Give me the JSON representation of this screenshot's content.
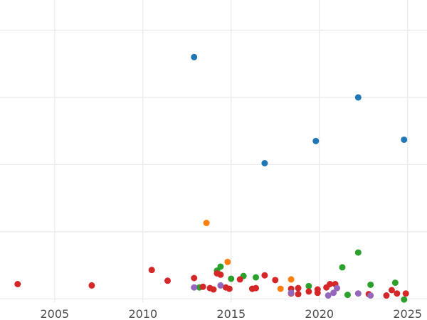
{
  "chart_data": {
    "type": "scatter",
    "title": "",
    "xlabel": "",
    "ylabel": "",
    "xlim": [
      2001.9,
      2026.1
    ],
    "ylim": [
      0,
      450
    ],
    "x_ticks": [
      2005,
      2010,
      2015,
      2020,
      2025
    ],
    "x_tick_labels": [
      "2005",
      "2010",
      "2015",
      "2020",
      "2025"
    ],
    "y_gridlines": [
      5,
      105,
      205,
      305,
      405
    ],
    "grid": true,
    "legend": "none",
    "series": [
      {
        "color": "#1f77b4",
        "points": [
          {
            "x": 2012.9,
            "y": 365
          },
          {
            "x": 2016.9,
            "y": 207
          },
          {
            "x": 2019.8,
            "y": 240
          },
          {
            "x": 2022.2,
            "y": 305
          },
          {
            "x": 2024.8,
            "y": 242
          }
        ]
      },
      {
        "color": "#ff7f0e",
        "points": [
          {
            "x": 2013.6,
            "y": 118
          },
          {
            "x": 2014.8,
            "y": 60
          },
          {
            "x": 2017.8,
            "y": 20
          },
          {
            "x": 2018.4,
            "y": 34
          }
        ]
      },
      {
        "color": "#2ca02c",
        "points": [
          {
            "x": 2013.2,
            "y": 22
          },
          {
            "x": 2014.2,
            "y": 47
          },
          {
            "x": 2014.4,
            "y": 53
          },
          {
            "x": 2015.0,
            "y": 35
          },
          {
            "x": 2015.7,
            "y": 39
          },
          {
            "x": 2016.2,
            "y": 20
          },
          {
            "x": 2016.4,
            "y": 37
          },
          {
            "x": 2019.4,
            "y": 24
          },
          {
            "x": 2021.3,
            "y": 52
          },
          {
            "x": 2021.6,
            "y": 11
          },
          {
            "x": 2022.2,
            "y": 74
          },
          {
            "x": 2022.9,
            "y": 26
          },
          {
            "x": 2024.3,
            "y": 29
          },
          {
            "x": 2024.8,
            "y": 4
          }
        ]
      },
      {
        "color": "#d62728",
        "points": [
          {
            "x": 2002.9,
            "y": 27
          },
          {
            "x": 2007.1,
            "y": 25
          },
          {
            "x": 2010.5,
            "y": 48
          },
          {
            "x": 2011.4,
            "y": 32
          },
          {
            "x": 2012.9,
            "y": 36
          },
          {
            "x": 2013.4,
            "y": 23
          },
          {
            "x": 2013.8,
            "y": 21
          },
          {
            "x": 2014.0,
            "y": 19
          },
          {
            "x": 2014.2,
            "y": 43
          },
          {
            "x": 2014.4,
            "y": 41
          },
          {
            "x": 2014.7,
            "y": 22
          },
          {
            "x": 2014.9,
            "y": 20
          },
          {
            "x": 2015.5,
            "y": 34
          },
          {
            "x": 2016.2,
            "y": 20
          },
          {
            "x": 2016.4,
            "y": 21
          },
          {
            "x": 2016.9,
            "y": 40
          },
          {
            "x": 2017.5,
            "y": 33
          },
          {
            "x": 2018.4,
            "y": 20
          },
          {
            "x": 2018.4,
            "y": 13
          },
          {
            "x": 2018.8,
            "y": 21
          },
          {
            "x": 2018.8,
            "y": 12
          },
          {
            "x": 2019.4,
            "y": 16
          },
          {
            "x": 2019.9,
            "y": 14
          },
          {
            "x": 2019.9,
            "y": 19
          },
          {
            "x": 2020.4,
            "y": 22
          },
          {
            "x": 2020.6,
            "y": 27
          },
          {
            "x": 2020.9,
            "y": 27
          },
          {
            "x": 2022.8,
            "y": 12
          },
          {
            "x": 2023.8,
            "y": 10
          },
          {
            "x": 2024.1,
            "y": 18
          },
          {
            "x": 2024.4,
            "y": 13
          },
          {
            "x": 2024.9,
            "y": 13
          }
        ]
      },
      {
        "color": "#9467bd",
        "points": [
          {
            "x": 2012.9,
            "y": 22
          },
          {
            "x": 2014.4,
            "y": 25
          },
          {
            "x": 2018.4,
            "y": 14
          },
          {
            "x": 2020.5,
            "y": 10
          },
          {
            "x": 2020.8,
            "y": 14
          },
          {
            "x": 2021.0,
            "y": 21
          },
          {
            "x": 2022.2,
            "y": 13
          },
          {
            "x": 2022.9,
            "y": 10
          }
        ]
      }
    ]
  }
}
